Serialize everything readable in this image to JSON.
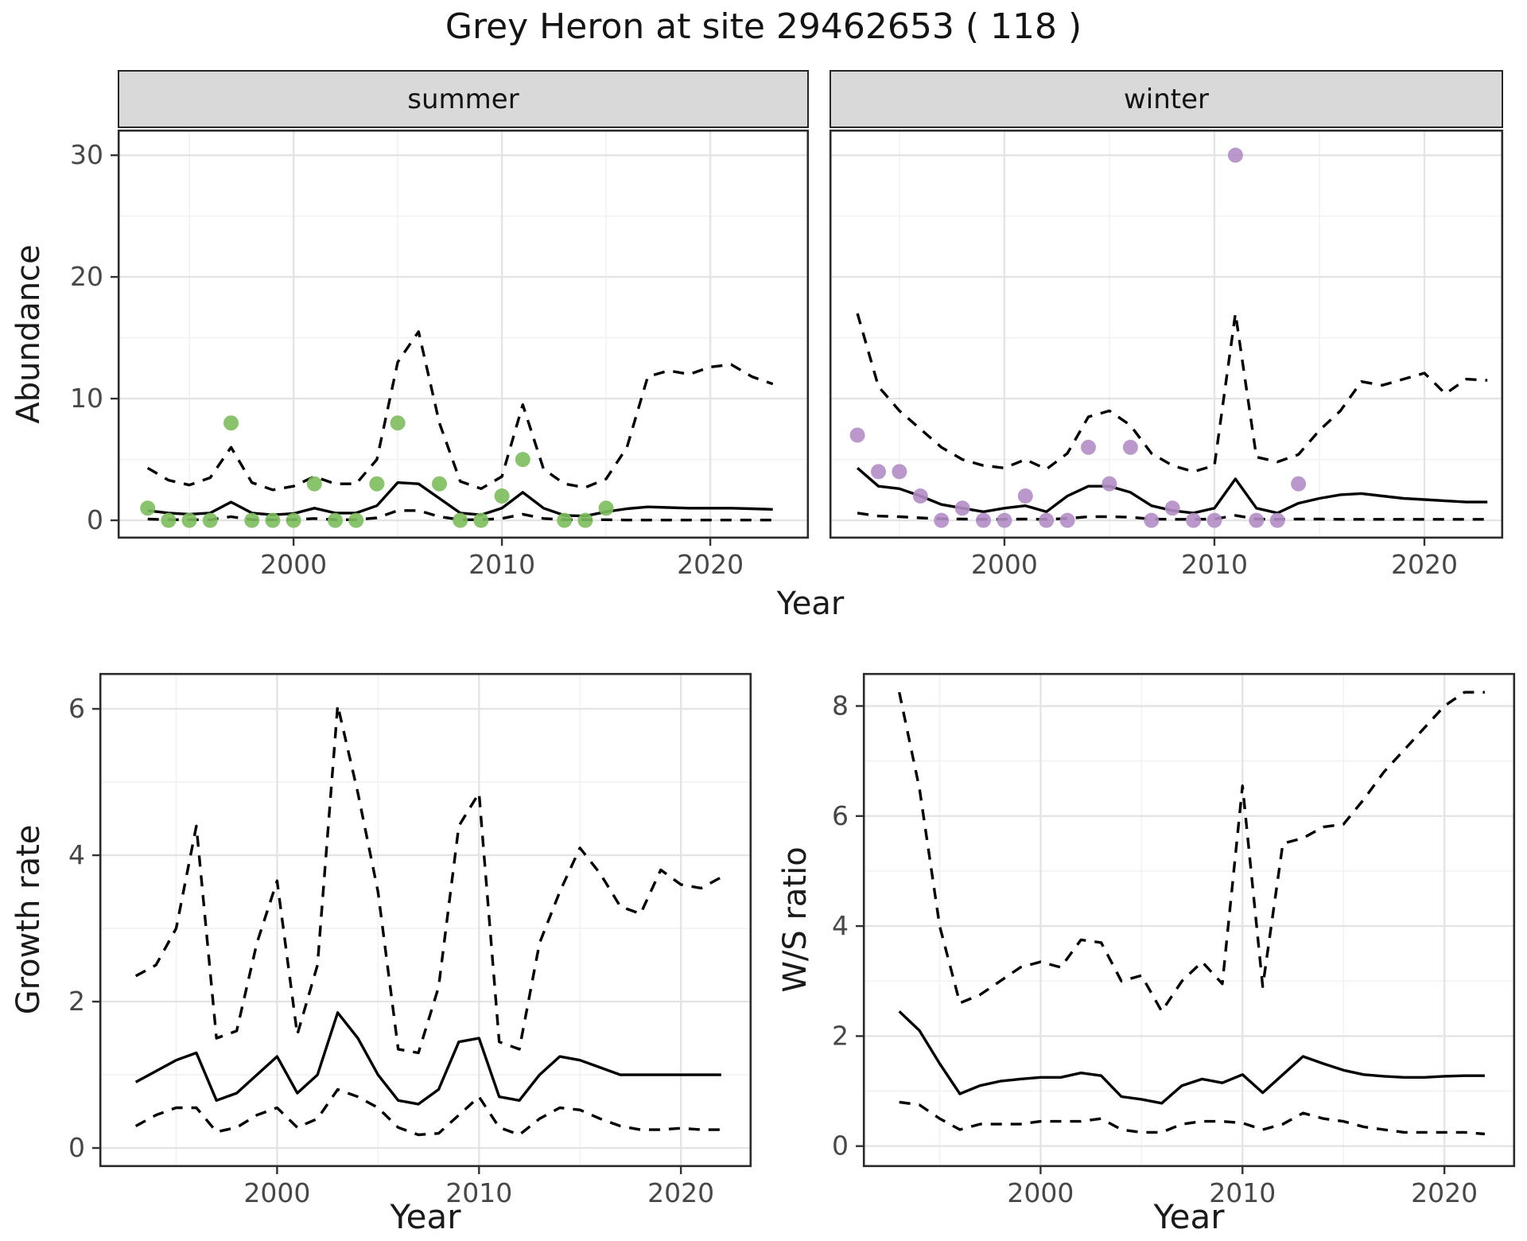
{
  "title": "Grey Heron at site 29462653 ( 118 )",
  "facets": {
    "summer": "summer",
    "winter": "winter"
  },
  "axis_titles": {
    "abundance": "Abundance",
    "year_top": "Year",
    "growth_rate": "Growth rate",
    "year_growth": "Year",
    "ws_ratio": "W/S ratio",
    "year_ws": "Year"
  },
  "colors": {
    "summer_point": "#7CBC5C",
    "winter_point": "#B28DC5",
    "line": "#000000",
    "strip_bg": "#D9D9D9",
    "panel_border": "#2B2B2B",
    "grid_major": "#E4E4E4",
    "grid_minor": "#F2F2F2",
    "axis_text": "#474747"
  },
  "chart_data": [
    {
      "id": "summer",
      "type": "line",
      "title": "summer",
      "xlabel": "Year",
      "ylabel": "Abundance",
      "years": [
        1993,
        1994,
        1995,
        1996,
        1997,
        1998,
        1999,
        2000,
        2001,
        2002,
        2003,
        2004,
        2005,
        2006,
        2007,
        2008,
        2009,
        2010,
        2011,
        2012,
        2013,
        2014,
        2015,
        2016,
        2017,
        2018,
        2019,
        2020,
        2021,
        2022,
        2023
      ],
      "series": [
        {
          "name": "median",
          "style": "solid",
          "values": [
            0.8,
            0.6,
            0.5,
            0.6,
            1.5,
            0.6,
            0.45,
            0.55,
            1.0,
            0.6,
            0.6,
            1.2,
            3.1,
            3.0,
            1.8,
            0.6,
            0.45,
            1.0,
            2.3,
            1.0,
            0.4,
            0.35,
            0.7,
            0.95,
            1.1,
            1.05,
            1.0,
            1.0,
            1.0,
            0.95,
            0.9
          ]
        },
        {
          "name": "upper95",
          "style": "dashed",
          "values": [
            4.3,
            3.3,
            2.9,
            3.5,
            6.0,
            3.1,
            2.5,
            2.8,
            3.6,
            3.0,
            3.0,
            5.0,
            13.0,
            15.5,
            8.0,
            3.2,
            2.6,
            3.6,
            9.5,
            4.2,
            3.0,
            2.7,
            3.4,
            6.0,
            11.8,
            12.3,
            12.0,
            12.6,
            12.8,
            11.8,
            11.2
          ]
        },
        {
          "name": "lower95",
          "style": "dashed",
          "values": [
            0.1,
            0.05,
            0.05,
            0.05,
            0.3,
            0.05,
            0.05,
            0.05,
            0.15,
            0.05,
            0.05,
            0.2,
            0.8,
            0.8,
            0.3,
            0.05,
            0.05,
            0.15,
            0.5,
            0.15,
            0.05,
            0.05,
            0.05,
            0.02,
            0.02,
            0.02,
            0.02,
            0.02,
            0.02,
            0.02,
            0.02
          ]
        }
      ],
      "points": {
        "name": "observed summer counts",
        "color_key": "summer_point",
        "x": [
          1993,
          1994,
          1995,
          1996,
          1997,
          1998,
          1999,
          2000,
          2001,
          2002,
          2003,
          2004,
          2005,
          2007,
          2008,
          2009,
          2010,
          2011,
          2013,
          2014,
          2015
        ],
        "y": [
          1,
          0,
          0,
          0,
          8,
          0,
          0,
          0,
          3,
          0,
          0,
          3,
          8,
          3,
          0,
          0,
          2,
          5,
          0,
          0,
          1
        ]
      },
      "xlim": [
        1991.56,
        2024.73
      ],
      "ylim": [
        -1.5,
        32.1
      ],
      "xticks": [
        2000,
        2010,
        2020
      ],
      "xtick_labels": [
        "2000",
        "2010",
        "2020"
      ],
      "xminor": [
        1995,
        2005,
        2015
      ],
      "yticks": [
        0,
        10,
        20,
        30
      ],
      "ytick_labels": [
        "0",
        "10",
        "20",
        "30"
      ],
      "yminor": [
        5,
        15,
        25
      ],
      "show_y_labels": true
    },
    {
      "id": "winter",
      "type": "line",
      "title": "winter",
      "xlabel": "Year",
      "ylabel": "Abundance",
      "years": [
        1993,
        1994,
        1995,
        1996,
        1997,
        1998,
        1999,
        2000,
        2001,
        2002,
        2003,
        2004,
        2005,
        2006,
        2007,
        2008,
        2009,
        2010,
        2011,
        2012,
        2013,
        2014,
        2015,
        2016,
        2017,
        2018,
        2019,
        2020,
        2021,
        2022,
        2023
      ],
      "series": [
        {
          "name": "median",
          "style": "solid",
          "values": [
            4.3,
            2.8,
            2.6,
            2.0,
            1.3,
            1.0,
            0.7,
            1.0,
            1.2,
            0.7,
            2.0,
            2.8,
            2.8,
            2.3,
            1.2,
            0.8,
            0.6,
            1.0,
            3.4,
            1.0,
            0.6,
            1.4,
            1.8,
            2.1,
            2.2,
            2.0,
            1.8,
            1.7,
            1.6,
            1.5,
            1.5
          ]
        },
        {
          "name": "upper95",
          "style": "dashed",
          "values": [
            17.0,
            11.0,
            9.0,
            7.5,
            6.0,
            5.0,
            4.5,
            4.3,
            5.0,
            4.2,
            5.5,
            8.5,
            9.0,
            7.8,
            5.5,
            4.5,
            4.0,
            4.5,
            17.0,
            5.2,
            4.8,
            5.4,
            7.4,
            9.0,
            11.4,
            11.1,
            11.6,
            12.1,
            10.4,
            11.6,
            11.5
          ]
        },
        {
          "name": "lower95",
          "style": "dashed",
          "values": [
            0.6,
            0.35,
            0.3,
            0.2,
            0.12,
            0.1,
            0.08,
            0.08,
            0.1,
            0.08,
            0.15,
            0.3,
            0.3,
            0.25,
            0.1,
            0.08,
            0.08,
            0.1,
            0.4,
            0.1,
            0.08,
            0.1,
            0.1,
            0.08,
            0.08,
            0.08,
            0.08,
            0.08,
            0.08,
            0.08,
            0.08
          ]
        }
      ],
      "points": {
        "name": "observed winter counts",
        "color_key": "winter_point",
        "x": [
          1993,
          1994,
          1995,
          1996,
          1997,
          1998,
          1999,
          2000,
          2001,
          2002,
          2003,
          2004,
          2005,
          2006,
          2007,
          2008,
          2009,
          2010,
          2011,
          2012,
          2013,
          2014
        ],
        "y": [
          7,
          4,
          4,
          2,
          0,
          1,
          0,
          0,
          2,
          0,
          0,
          6,
          3,
          6,
          0,
          1,
          0,
          0,
          30,
          0,
          0,
          3
        ]
      },
      "xlim": [
        1991.67,
        2023.75
      ],
      "ylim": [
        -1.5,
        32.1
      ],
      "xticks": [
        2000,
        2010,
        2020
      ],
      "xtick_labels": [
        "2000",
        "2010",
        "2020"
      ],
      "xminor": [
        1995,
        2005,
        2015
      ],
      "yticks": [
        0,
        10,
        20,
        30
      ],
      "ytick_labels": [
        "0",
        "10",
        "20",
        "30"
      ],
      "yminor": [
        5,
        15,
        25
      ],
      "show_y_labels": false
    },
    {
      "id": "growth",
      "type": "line",
      "title": "Growth rate",
      "xlabel": "Year",
      "ylabel": "Growth rate",
      "years": [
        1993,
        1994,
        1995,
        1996,
        1997,
        1998,
        1999,
        2000,
        2001,
        2002,
        2003,
        2004,
        2005,
        2006,
        2007,
        2008,
        2009,
        2010,
        2011,
        2012,
        2013,
        2014,
        2015,
        2016,
        2017,
        2018,
        2019,
        2020,
        2021,
        2022
      ],
      "series": [
        {
          "name": "median",
          "style": "solid",
          "values": [
            0.9,
            1.05,
            1.2,
            1.3,
            0.65,
            0.75,
            1.0,
            1.25,
            0.75,
            1.0,
            1.85,
            1.5,
            1.0,
            0.65,
            0.6,
            0.8,
            1.45,
            1.5,
            0.7,
            0.65,
            1.0,
            1.25,
            1.2,
            1.1,
            1.0,
            1.0,
            1.0,
            1.0,
            1.0,
            1.0
          ]
        },
        {
          "name": "upper95",
          "style": "dashed",
          "values": [
            2.35,
            2.5,
            3.0,
            4.4,
            1.5,
            1.6,
            2.8,
            3.65,
            1.55,
            2.5,
            6.05,
            4.85,
            3.5,
            1.35,
            1.3,
            2.2,
            4.4,
            4.85,
            1.45,
            1.35,
            2.8,
            3.5,
            4.1,
            3.75,
            3.3,
            3.2,
            3.8,
            3.6,
            3.55,
            3.7
          ]
        },
        {
          "name": "lower95",
          "style": "dashed",
          "values": [
            0.3,
            0.45,
            0.55,
            0.55,
            0.22,
            0.28,
            0.45,
            0.55,
            0.28,
            0.4,
            0.8,
            0.7,
            0.55,
            0.28,
            0.18,
            0.2,
            0.45,
            0.7,
            0.28,
            0.18,
            0.4,
            0.55,
            0.52,
            0.4,
            0.3,
            0.25,
            0.25,
            0.27,
            0.25,
            0.25
          ]
        }
      ],
      "xlim": [
        1991.2,
        2023.5
      ],
      "ylim": [
        -0.26,
        6.49
      ],
      "xticks": [
        2000,
        2010,
        2020
      ],
      "xtick_labels": [
        "2000",
        "2010",
        "2020"
      ],
      "xminor": [
        1995,
        2005,
        2015
      ],
      "yticks": [
        0,
        2,
        4,
        6
      ],
      "ytick_labels": [
        "0",
        "2",
        "4",
        "6"
      ],
      "yminor": [
        1,
        3,
        5
      ],
      "show_y_labels": true
    },
    {
      "id": "ws",
      "type": "line",
      "title": "W/S ratio",
      "xlabel": "Year",
      "ylabel": "W/S ratio",
      "years": [
        1993,
        1994,
        1995,
        1996,
        1997,
        1998,
        1999,
        2000,
        2001,
        2002,
        2003,
        2004,
        2005,
        2006,
        2007,
        2008,
        2009,
        2010,
        2011,
        2012,
        2013,
        2014,
        2015,
        2016,
        2017,
        2018,
        2019,
        2020,
        2021,
        2022
      ],
      "series": [
        {
          "name": "median",
          "style": "solid",
          "values": [
            2.45,
            2.1,
            1.5,
            0.95,
            1.1,
            1.18,
            1.22,
            1.25,
            1.25,
            1.33,
            1.28,
            0.9,
            0.85,
            0.78,
            1.1,
            1.22,
            1.15,
            1.3,
            0.97,
            1.3,
            1.63,
            1.5,
            1.38,
            1.3,
            1.27,
            1.25,
            1.25,
            1.27,
            1.28,
            1.28
          ]
        },
        {
          "name": "upper95",
          "style": "dashed",
          "values": [
            8.25,
            6.5,
            4.0,
            2.6,
            2.75,
            3.0,
            3.25,
            3.35,
            3.25,
            3.75,
            3.7,
            3.0,
            3.1,
            2.45,
            3.0,
            3.35,
            2.95,
            6.55,
            2.9,
            5.5,
            5.6,
            5.8,
            5.85,
            6.3,
            6.8,
            7.2,
            7.6,
            8.0,
            8.25,
            8.25
          ]
        },
        {
          "name": "lower95",
          "style": "dashed",
          "values": [
            0.8,
            0.75,
            0.5,
            0.3,
            0.4,
            0.4,
            0.4,
            0.45,
            0.45,
            0.45,
            0.5,
            0.3,
            0.25,
            0.25,
            0.4,
            0.45,
            0.45,
            0.42,
            0.3,
            0.4,
            0.6,
            0.5,
            0.45,
            0.35,
            0.3,
            0.25,
            0.25,
            0.25,
            0.25,
            0.22
          ]
        }
      ],
      "xlim": [
        1991.2,
        2023.5
      ],
      "ylim": [
        -0.38,
        8.6
      ],
      "xticks": [
        2000,
        2010,
        2020
      ],
      "xtick_labels": [
        "2000",
        "2010",
        "2020"
      ],
      "xminor": [
        1995,
        2005,
        2015
      ],
      "yticks": [
        0,
        2,
        4,
        6,
        8
      ],
      "ytick_labels": [
        "0",
        "2",
        "4",
        "6",
        "8"
      ],
      "yminor": [
        1,
        3,
        5,
        7
      ],
      "show_y_labels": true
    }
  ]
}
